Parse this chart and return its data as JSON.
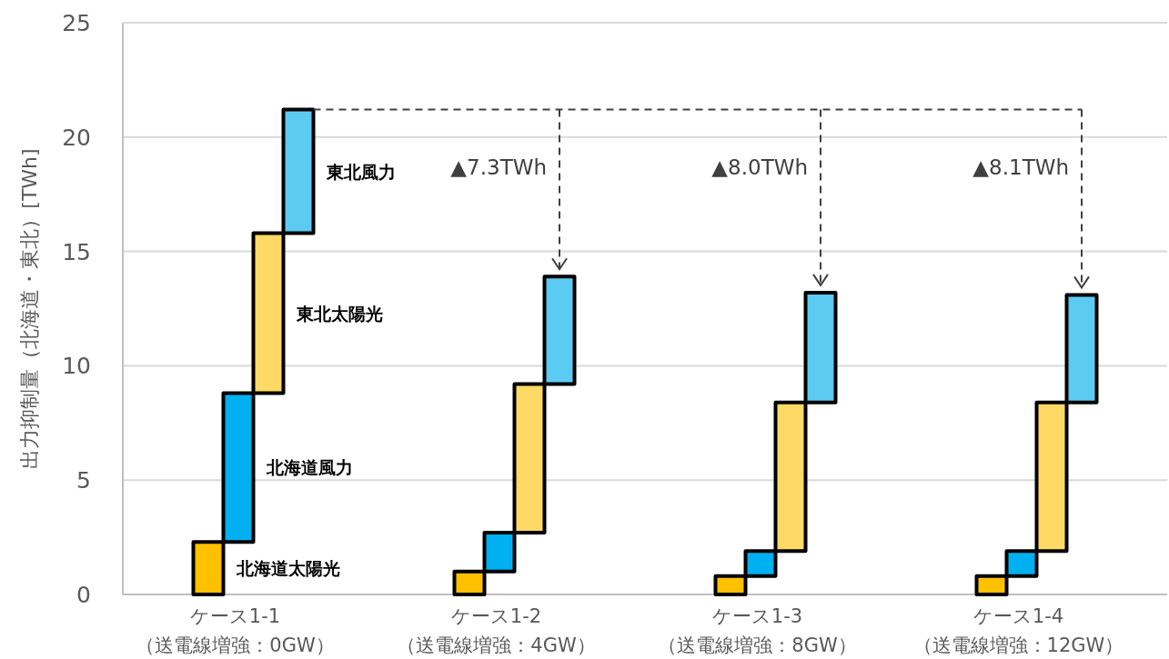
{
  "chart_data": {
    "type": "bar",
    "ylabel": "出力抑制量（北海道・東北）[TWh]",
    "categories": [
      "ケース1-1\n（送電線増強：0GW）",
      "ケース1-2\n（送電線増強：4GW）",
      "ケース1-3\n（送電線増強：8GW）",
      "ケース1-4\n（送電線増強：12GW）"
    ],
    "series": [
      {
        "name": "北海道太陽光",
        "color": "#ffc000",
        "values": [
          2.3,
          1.0,
          0.8,
          0.8
        ],
        "base": [
          0,
          0,
          0,
          0
        ]
      },
      {
        "name": "北海道風力",
        "color": "#00b0f0",
        "values": [
          6.5,
          1.7,
          1.1,
          1.1
        ],
        "base": [
          2.3,
          1.0,
          0.8,
          0.8
        ]
      },
      {
        "name": "東北太陽光",
        "color": "#ffd966",
        "values": [
          7.0,
          6.5,
          6.5,
          6.5
        ],
        "base": [
          8.8,
          2.7,
          1.9,
          1.9
        ]
      },
      {
        "name": "東北風力",
        "color": "#5ccbf2",
        "values": [
          5.4,
          4.7,
          4.8,
          4.7
        ],
        "base": [
          15.8,
          9.2,
          8.4,
          8.4
        ]
      }
    ],
    "ref_lines": [
      {
        "axis": "y",
        "value": 21.2,
        "color": "#404040",
        "line_style": "dashed"
      }
    ],
    "annotations": [
      "▲7.3TWh",
      "▲8.0TWh",
      "▲8.1TWh"
    ],
    "ylim": [
      0,
      25
    ],
    "yticks": [
      0,
      5,
      10,
      15,
      20,
      25
    ],
    "grid": "y",
    "legend": false
  }
}
